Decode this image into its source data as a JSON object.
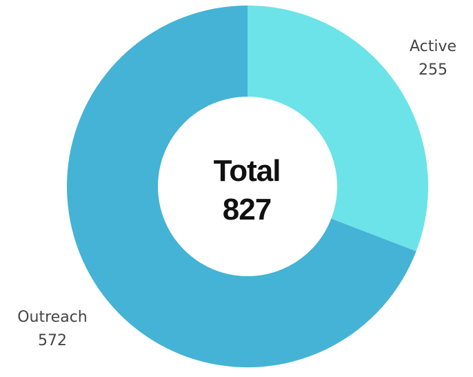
{
  "chart_data": {
    "type": "pie",
    "variant": "donut",
    "center_label": "Total",
    "center_value": "827",
    "slices": [
      {
        "label": "Active",
        "value": 255,
        "value_text": "255",
        "color": "#6be3e9"
      },
      {
        "label": "Outreach",
        "value": 572,
        "value_text": "572",
        "color": "#44b3d5"
      }
    ],
    "start_angle_deg": 0,
    "direction": "clockwise",
    "legend": "none"
  }
}
